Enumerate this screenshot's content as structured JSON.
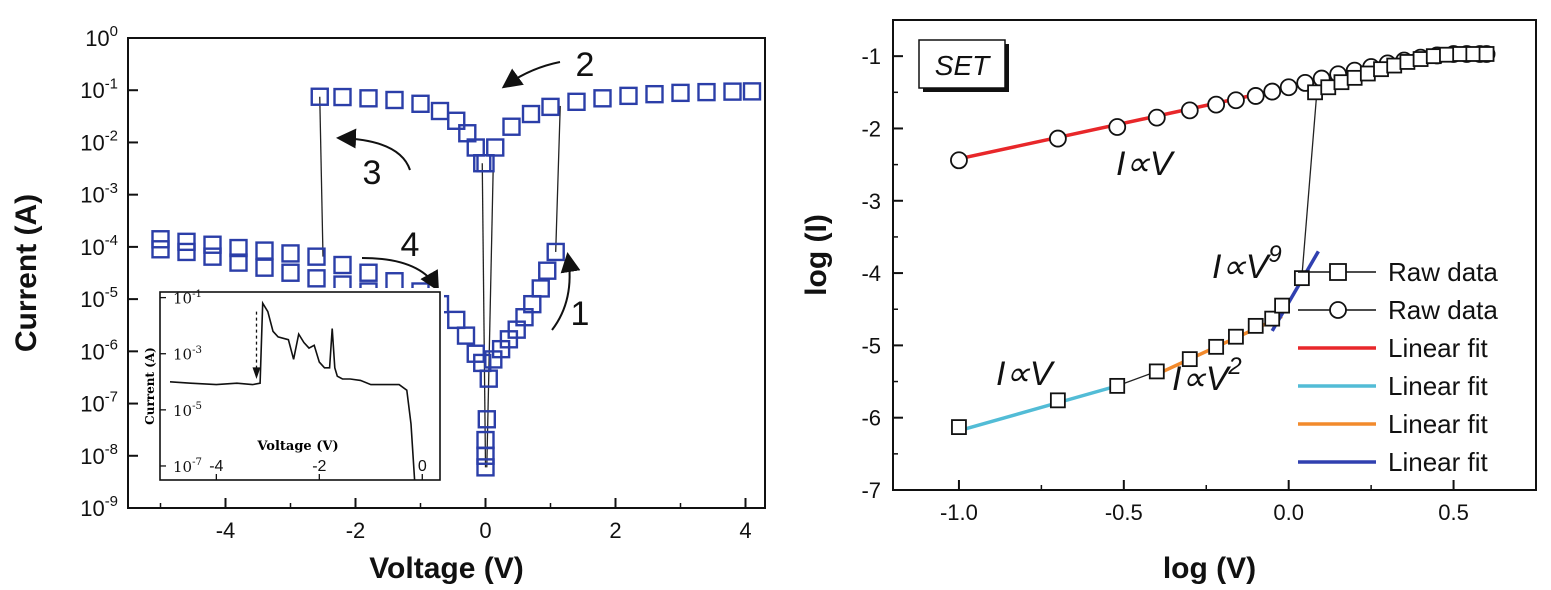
{
  "chart_data": [
    {
      "type": "scatter",
      "xlabel": "Voltage (V)",
      "ylabel": "Current (A)",
      "xlim": [
        -5.5,
        4.3
      ],
      "y_scale": "log",
      "ylim": [
        1e-09,
        1
      ],
      "x_ticks": [
        "-4",
        "-2",
        "0",
        "2",
        "4"
      ],
      "x_tick_values": [
        -4,
        -2,
        0,
        2,
        4
      ],
      "y_ticks": [
        "10^0",
        "10^-1",
        "10^-2",
        "10^-3",
        "10^-4",
        "10^-5",
        "10^-6",
        "10^-7",
        "10^-8",
        "10^-9"
      ],
      "y_tick_exponents": [
        0,
        -1,
        -2,
        -3,
        -4,
        -5,
        -6,
        -7,
        -8,
        -9
      ],
      "marker": "square-open",
      "color": "#2b3ea8",
      "series": [
        {
          "name": "",
          "x": [
            1.08,
            0.95,
            0.85,
            0.72,
            0.6,
            0.48,
            0.36,
            0.24,
            0.12,
            0.05,
            0.02,
            0.0,
            0.0,
            0.0
          ],
          "y": [
            8e-05,
            3.5e-05,
            1.6e-05,
            8e-06,
            4.5e-06,
            2.6e-06,
            1.7e-06,
            1.1e-06,
            7e-07,
            3e-07,
            5e-08,
            2e-08,
            1e-08,
            6e-09
          ]
        },
        {
          "name": "",
          "x": [
            0.0,
            0.15,
            0.4,
            0.7,
            1.0,
            1.4,
            1.8,
            2.2,
            2.6,
            3.0,
            3.4,
            3.8,
            4.1
          ],
          "y": [
            0.004,
            0.008,
            0.02,
            0.035,
            0.048,
            0.06,
            0.07,
            0.078,
            0.084,
            0.089,
            0.092,
            0.094,
            0.095
          ]
        },
        {
          "name": "",
          "x": [
            -2.55,
            -2.2,
            -1.8,
            -1.4,
            -1.0,
            -0.7,
            -0.45,
            -0.28,
            -0.15,
            -0.05
          ],
          "y": [
            0.075,
            0.074,
            0.07,
            0.065,
            0.055,
            0.04,
            0.026,
            0.015,
            0.008,
            0.004
          ]
        },
        {
          "name": "",
          "x": [
            -5.0,
            -4.6,
            -4.2,
            -3.8,
            -3.4,
            -3.0,
            -2.6,
            -2.2,
            -1.8,
            -1.4,
            -1.0,
            -0.7,
            -0.45,
            -0.3,
            -0.15,
            -0.05
          ],
          "y": [
            0.00014,
            0.000125,
            0.00011,
            9.5e-05,
            8.5e-05,
            7.5e-05,
            6.5e-05,
            4.5e-05,
            3.2e-05,
            2.2e-05,
            1.4e-05,
            8e-06,
            4e-06,
            2e-06,
            9e-07,
            6e-07
          ]
        },
        {
          "name": "",
          "x": [
            -5.0,
            -4.6,
            -4.2,
            -3.8,
            -3.4,
            -3.0,
            -2.6,
            -2.2,
            -1.8,
            -1.4,
            -1.0
          ],
          "y": [
            9e-05,
            8e-05,
            6.5e-05,
            5e-05,
            4e-05,
            3.2e-05,
            2.5e-05,
            1.9e-05,
            1.4e-05,
            1e-05,
            7e-06
          ]
        }
      ],
      "annotations": [
        "1",
        "2",
        "3",
        "4"
      ],
      "inset": {
        "xlabel": "Voltage (V)",
        "ylabel": "Current (A)",
        "x_ticks": [
          "-4",
          "-2",
          "0"
        ],
        "x_tick_values": [
          -4,
          -2,
          0
        ],
        "y_ticks": [
          "10^-1",
          "10^-3",
          "10^-5",
          "10^-7"
        ],
        "y_tick_exponents": [
          -1,
          -3,
          -5,
          -7
        ],
        "xlim": [
          -4.9,
          0.15
        ],
        "ylim_exp": [
          -7.5,
          -0.8
        ],
        "series": [
          {
            "x": [
              -4.9,
              -4.5,
              -4.0,
              -3.6,
              -3.3,
              -3.15,
              -3.1,
              -3.0,
              -2.9,
              -2.8,
              -2.6,
              -2.5,
              -2.4,
              -2.3,
              -2.2,
              -2.1,
              -2.0,
              -1.9,
              -1.8,
              -1.75,
              -1.7,
              -1.65,
              -1.55,
              -1.4,
              -1.2,
              -1.0,
              -0.7,
              -0.45,
              -0.3,
              -0.22,
              -0.15
            ],
            "y": [
              -4.0,
              -4.05,
              -4.1,
              -4.05,
              -4.1,
              -4.05,
              -1.2,
              -1.5,
              -2.2,
              -2.4,
              -2.5,
              -3.2,
              -2.3,
              -2.6,
              -2.8,
              -2.7,
              -3.3,
              -3.5,
              -3.5,
              -2.1,
              -3.5,
              -3.8,
              -3.9,
              -3.9,
              -3.95,
              -4.1,
              -4.1,
              -4.1,
              -4.3,
              -5.5,
              -7.5
            ]
          }
        ]
      }
    },
    {
      "type": "scatter",
      "xlabel": "log (V)",
      "ylabel": "log (I)",
      "xlim": [
        -1.2,
        0.75
      ],
      "ylim": [
        -7,
        -0.5
      ],
      "x_ticks": [
        "-1.0",
        "-0.5",
        "0.0",
        "0.5"
      ],
      "x_tick_values": [
        -1.0,
        -0.5,
        0.0,
        0.5
      ],
      "y_ticks": [
        "-1",
        "-2",
        "-3",
        "-4",
        "-5",
        "-6",
        "-7"
      ],
      "y_tick_values": [
        -1,
        -2,
        -3,
        -4,
        -5,
        -6,
        -7
      ],
      "box_label": "SET",
      "legend_position": "bottom-right",
      "legend": [
        {
          "label": "Raw data",
          "marker": "square",
          "color": "#111111"
        },
        {
          "label": "Raw data",
          "marker": "circle",
          "color": "#111111"
        },
        {
          "label": "Linear fit",
          "marker": "line",
          "color": "#e8272a"
        },
        {
          "label": "Linear fit",
          "marker": "line",
          "color": "#52bcd6"
        },
        {
          "label": "Linear fit",
          "marker": "line",
          "color": "#f28a2c"
        },
        {
          "label": "Linear fit",
          "marker": "line",
          "color": "#3040b0"
        }
      ],
      "series": [
        {
          "name": "Raw data",
          "marker": "square",
          "x": [
            -1.0,
            -0.7,
            -0.52,
            -0.4,
            -0.3,
            -0.22,
            -0.16,
            -0.1,
            -0.05,
            -0.02,
            0.04,
            0.08,
            0.12,
            0.16,
            0.2,
            0.24,
            0.28,
            0.32,
            0.36,
            0.4,
            0.44,
            0.48,
            0.52,
            0.56,
            0.6
          ],
          "y": [
            -6.13,
            -5.76,
            -5.56,
            -5.36,
            -5.19,
            -5.02,
            -4.88,
            -4.73,
            -4.63,
            -4.45,
            -4.07,
            -1.5,
            -1.43,
            -1.36,
            -1.3,
            -1.24,
            -1.18,
            -1.13,
            -1.08,
            -1.04,
            -1.0,
            -0.98,
            -0.97,
            -0.97,
            -0.97
          ]
        },
        {
          "name": "Raw data",
          "marker": "circle",
          "x": [
            -1.0,
            -0.7,
            -0.52,
            -0.4,
            -0.3,
            -0.22,
            -0.16,
            -0.1,
            -0.05,
            0.0,
            0.05,
            0.1,
            0.15,
            0.2,
            0.25,
            0.3,
            0.35,
            0.4,
            0.45,
            0.5,
            0.54,
            0.58,
            0.6
          ],
          "y": [
            -2.44,
            -2.14,
            -1.98,
            -1.85,
            -1.75,
            -1.67,
            -1.61,
            -1.55,
            -1.49,
            -1.43,
            -1.37,
            -1.31,
            -1.25,
            -1.2,
            -1.15,
            -1.1,
            -1.06,
            -1.02,
            -0.99,
            -0.97,
            -0.97,
            -0.97,
            -0.97
          ]
        }
      ],
      "fits": [
        {
          "label": "Linear fit",
          "color": "#e8272a",
          "x": [
            -1.0,
            0.45
          ],
          "y": [
            -2.42,
            -0.99
          ]
        },
        {
          "label": "Linear fit",
          "color": "#52bcd6",
          "x": [
            -1.0,
            -0.52
          ],
          "y": [
            -6.18,
            -5.56
          ]
        },
        {
          "label": "Linear fit",
          "color": "#f28a2c",
          "x": [
            -0.4,
            -0.02
          ],
          "y": [
            -5.4,
            -4.6
          ]
        },
        {
          "label": "Linear fit",
          "color": "#3040b0",
          "x": [
            -0.05,
            0.09
          ],
          "y": [
            -4.8,
            -3.7
          ]
        }
      ],
      "annotations": [
        {
          "text": "I∝V"
        },
        {
          "text": "I∝V",
          "sup": "9"
        },
        {
          "text": "I∝V"
        },
        {
          "text": "I∝V",
          "sup": "2"
        }
      ]
    }
  ]
}
